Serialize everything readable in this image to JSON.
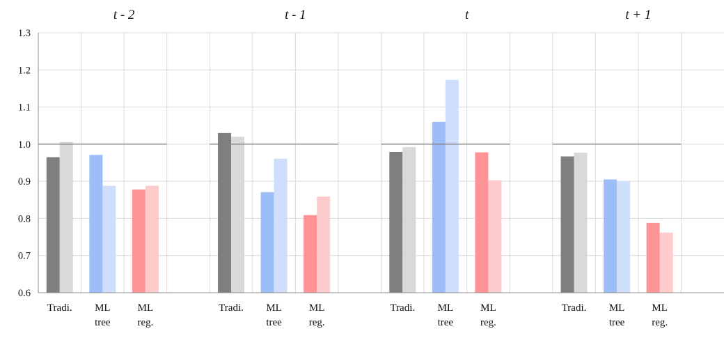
{
  "chart_data": {
    "type": "bar",
    "panels": [
      {
        "title": "t - 2",
        "groups": [
          {
            "label": [
              "Tradi."
            ],
            "values": [
              0.965,
              1.006
            ],
            "colors": [
              "#7f7f7f",
              "#d9d9d9"
            ]
          },
          {
            "label": [
              "ML",
              "tree"
            ],
            "values": [
              0.971,
              0.888
            ],
            "colors": [
              "#9dbdf9",
              "#cfdefb"
            ]
          },
          {
            "label": [
              "ML",
              "reg."
            ],
            "values": [
              0.878,
              0.888
            ],
            "colors": [
              "#fe9395",
              "#ffcccd"
            ]
          }
        ]
      },
      {
        "title": "t - 1",
        "groups": [
          {
            "label": [
              "Tradi."
            ],
            "values": [
              1.03,
              1.02
            ],
            "colors": [
              "#7f7f7f",
              "#d9d9d9"
            ]
          },
          {
            "label": [
              "ML",
              "tree"
            ],
            "values": [
              0.871,
              0.961
            ],
            "colors": [
              "#9dbdf9",
              "#cfdefb"
            ]
          },
          {
            "label": [
              "ML",
              "reg."
            ],
            "values": [
              0.809,
              0.859
            ],
            "colors": [
              "#fe9395",
              "#ffcccd"
            ]
          }
        ]
      },
      {
        "title": "t",
        "groups": [
          {
            "label": [
              "Tradi."
            ],
            "values": [
              0.979,
              0.992
            ],
            "colors": [
              "#7f7f7f",
              "#d9d9d9"
            ]
          },
          {
            "label": [
              "ML",
              "tree"
            ],
            "values": [
              1.06,
              1.173
            ],
            "colors": [
              "#9dbdf9",
              "#cfdefb"
            ]
          },
          {
            "label": [
              "ML",
              "reg."
            ],
            "values": [
              0.978,
              0.903
            ],
            "colors": [
              "#fe9395",
              "#ffcccd"
            ]
          }
        ]
      },
      {
        "title": "t + 1",
        "groups": [
          {
            "label": [
              "Tradi."
            ],
            "values": [
              0.967,
              0.977
            ],
            "colors": [
              "#7f7f7f",
              "#d9d9d9"
            ]
          },
          {
            "label": [
              "ML",
              "tree"
            ],
            "values": [
              0.905,
              0.901
            ],
            "colors": [
              "#9dbdf9",
              "#cfdefb"
            ]
          },
          {
            "label": [
              "ML",
              "reg."
            ],
            "values": [
              0.788,
              0.762
            ],
            "colors": [
              "#fe9395",
              "#ffcccd"
            ]
          }
        ]
      }
    ],
    "reference_line": 1.0,
    "yticks": [
      "0.6",
      "0.7",
      "0.8",
      "0.9",
      "1.0",
      "1.1",
      "1.2",
      "1.3"
    ],
    "ylim": [
      0.6,
      1.3
    ],
    "grid": true,
    "legend": false
  }
}
